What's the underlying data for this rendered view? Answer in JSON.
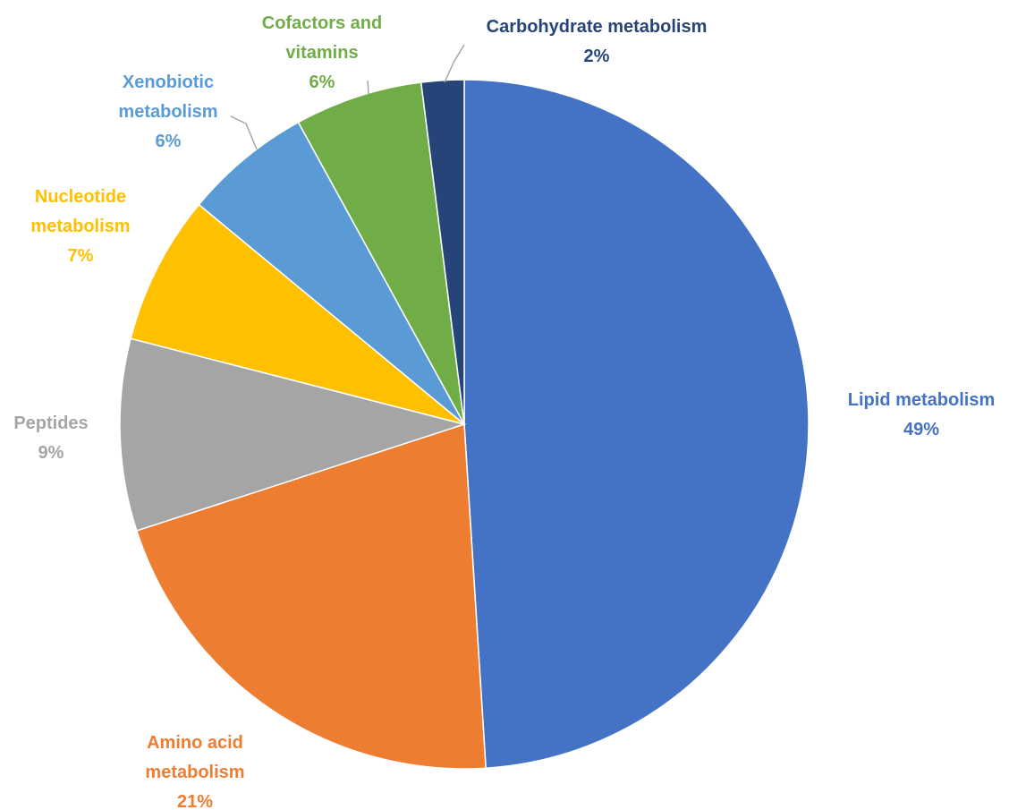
{
  "chart_data": {
    "type": "pie",
    "categories": [
      "Lipid metabolism",
      "Amino acid metabolism",
      "Peptides",
      "Nucleotide metabolism",
      "Xenobiotic metabolism",
      "Cofactors and vitamins",
      "Carbohydrate metabolism"
    ],
    "values": [
      49,
      21,
      9,
      7,
      6,
      6,
      2
    ],
    "value_labels": [
      "49%",
      "21%",
      "9%",
      "7%",
      "6%",
      "6%",
      "2%"
    ],
    "colors": [
      "#4472c4",
      "#ed7d31",
      "#a5a5a5",
      "#ffc000",
      "#5b9bd5",
      "#70ad47",
      "#264478"
    ]
  }
}
